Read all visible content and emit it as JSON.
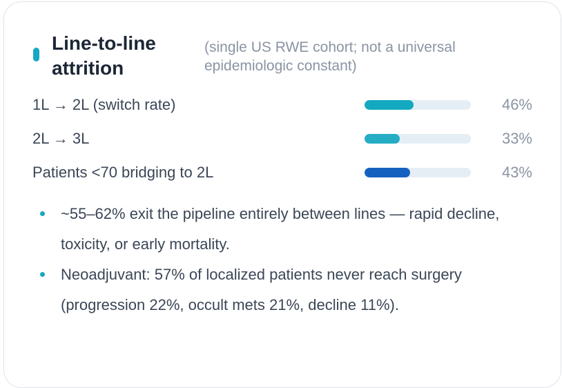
{
  "card": {
    "title": "Line-to-line attrition",
    "subtitle": "(single US RWE cohort; not a universal epidemiologic constant)",
    "accent_color": "#17a7c0"
  },
  "metrics": [
    {
      "label": "1L → 2L (switch rate)",
      "value_text": "46%",
      "fraction": 0.46,
      "color": "#13a9c1"
    },
    {
      "label": "2L → 3L",
      "value_text": "33%",
      "fraction": 0.33,
      "color": "#25adc4"
    },
    {
      "label": "Patients <70 bridging to 2L",
      "value_text": "43%",
      "fraction": 0.43,
      "color": "#1561c0"
    }
  ],
  "bullets": [
    "~55–62% exit the pipeline entirely between lines — rapid decline, toxicity, or early mortality.",
    "Neoadjuvant: 57% of localized patients never reach surgery (progression 22%, occult mets 21%, decline 11%)."
  ],
  "bullet_color": "#1aa6bf"
}
